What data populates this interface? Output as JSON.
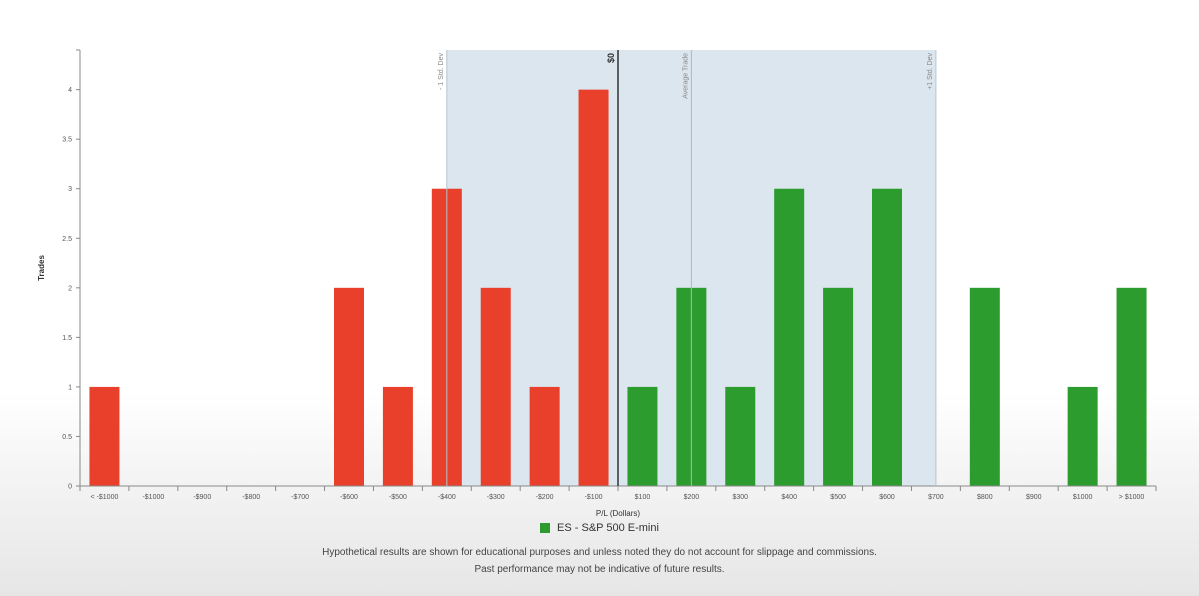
{
  "chart_data": {
    "type": "bar",
    "title": "",
    "xlabel": "P/L (Dollars)",
    "ylabel": "Trades",
    "ylim": [
      0,
      4.4
    ],
    "yticks": [
      "0",
      "0.5",
      "1",
      "1.5",
      "2",
      "2.5",
      "3",
      "3.5",
      "4"
    ],
    "categories": [
      "< -$1000",
      "-$1000",
      "-$900",
      "-$800",
      "-$700",
      "-$600",
      "-$500",
      "-$400",
      "-$300",
      "-$200",
      "-$100",
      "$100",
      "$200",
      "$300",
      "$400",
      "$500",
      "$600",
      "$700",
      "$800",
      "$900",
      "$1000",
      "> $1000"
    ],
    "values": [
      1,
      0,
      0,
      0,
      0,
      2,
      1,
      3,
      2,
      1,
      4,
      1,
      2,
      1,
      3,
      2,
      3,
      0,
      2,
      0,
      1,
      2
    ],
    "loss_color": "#e8402a",
    "profit_color": "#2c9c2f",
    "band_color": "#dce6ef",
    "markers": {
      "minus_std_dev": "- 1 Std. Dev",
      "zero": "$0",
      "average_trade": "Average Trade",
      "plus_std_dev": "+1 Std. Dev"
    },
    "grid": false,
    "legend": {
      "position": "bottom-center",
      "entries": [
        {
          "label": "ES - S&P 500 E-mini",
          "color": "#2c9c2f"
        }
      ]
    }
  },
  "disclaimer": {
    "line1": "Hypothetical results are shown for educational purposes and unless noted they do not account for slippage and commissions.",
    "line2": "Past performance may not be indicative of future results."
  }
}
